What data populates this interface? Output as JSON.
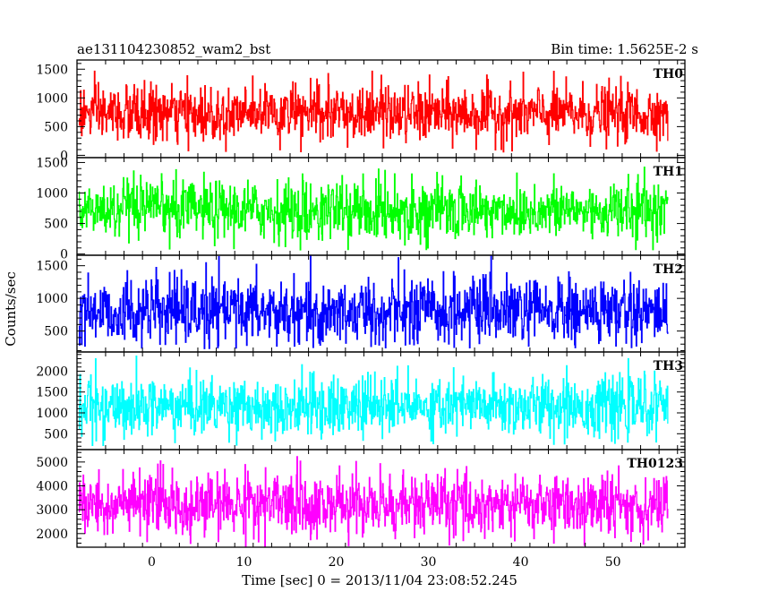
{
  "header": {
    "left_title": "ae131104230852_wam2_bst",
    "right_title": "Bin time: 1.5625E-2 s"
  },
  "axes": {
    "ylabel": "Counts/sec",
    "xlabel": "Time [sec] 0 = 2013/11/04 23:08:52.245"
  },
  "chart_data": {
    "type": "line",
    "title": "ae131104230852_wam2_bst",
    "bin_time": "Bin time: 1.5625E-2 s",
    "xlabel": "Time [sec] 0 = 2013/11/04 23:08:52.245",
    "ylabel": "Counts/sec",
    "x_range": [
      -8.1,
      57.8
    ],
    "x_data_range": [
      -7.9,
      56.0
    ],
    "x_ticks": [
      0,
      10,
      20,
      30,
      40,
      50
    ],
    "panels": [
      {
        "name": "TH0",
        "color": "#ff0000",
        "ylim": [
          -40,
          1660
        ],
        "y_ticks": [
          0,
          500,
          1000,
          1500
        ],
        "mean": 720,
        "spread": 250,
        "min": 60,
        "max": 1660
      },
      {
        "name": "TH1",
        "color": "#00ff00",
        "ylim": [
          -20,
          1580
        ],
        "y_ticks": [
          0,
          500,
          1000,
          1500
        ],
        "mean": 710,
        "spread": 240,
        "min": 60,
        "max": 1480
      },
      {
        "name": "TH2",
        "color": "#0000ff",
        "ylim": [
          180,
          1660
        ],
        "y_ticks": [
          500,
          1000,
          1500
        ],
        "mean": 790,
        "spread": 260,
        "min": 230,
        "max": 1660
      },
      {
        "name": "TH3",
        "color": "#00ffff",
        "ylim": [
          120,
          2460
        ],
        "y_ticks": [
          500,
          1000,
          1500,
          2000
        ],
        "mean": 1150,
        "spread": 360,
        "min": 200,
        "max": 2360
      },
      {
        "name": "TH0123",
        "color": "#ff00ff",
        "ylim": [
          1430,
          5520
        ],
        "y_ticks": [
          2000,
          3000,
          4000,
          5000
        ],
        "mean": 3200,
        "spread": 660,
        "min": 1430,
        "max": 5300
      }
    ]
  }
}
